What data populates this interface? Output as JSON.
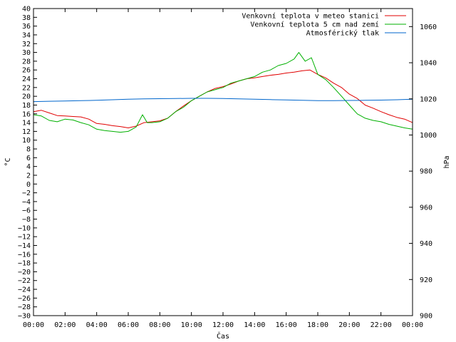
{
  "chart_data": {
    "type": "line",
    "title": "",
    "xlabel": "Čas",
    "ylabel_left": "°C",
    "ylabel_right": "hPa",
    "x_ticks": [
      "00:00",
      "02:00",
      "04:00",
      "06:00",
      "08:00",
      "10:00",
      "12:00",
      "14:00",
      "16:00",
      "18:00",
      "20:00",
      "22:00",
      "00:00"
    ],
    "xlim_hours": [
      0,
      24
    ],
    "ylim_left": [
      -30,
      40
    ],
    "ylim_right": [
      900,
      1070
    ],
    "y_left_ticks": [
      40,
      38,
      36,
      34,
      32,
      30,
      28,
      26,
      24,
      22,
      20,
      18,
      16,
      14,
      12,
      10,
      8,
      6,
      4,
      2,
      0,
      -2,
      -4,
      -6,
      -8,
      -10,
      -12,
      -14,
      -16,
      -18,
      -20,
      -22,
      -24,
      -26,
      -28,
      -30
    ],
    "y_left_tick_labels": [
      "40",
      "38",
      "36",
      "34",
      "32",
      "30",
      "28",
      "26",
      "24",
      "22",
      "20",
      "18",
      "16",
      "14",
      "12",
      "10",
      "8",
      "6",
      "4",
      "2",
      "0",
      "−2",
      "−4",
      "−6",
      "−8",
      "−10",
      "−12",
      "−14",
      "−16",
      "−18",
      "−20",
      "−22",
      "−24",
      "−26",
      "−28",
      "−30"
    ],
    "y_right_ticks": [
      1060,
      1040,
      1020,
      1000,
      980,
      960,
      940,
      920,
      900
    ],
    "y_right_tick_labels": [
      "1060",
      "1040",
      "1020",
      "1000",
      "980",
      "960",
      "940",
      "920",
      "900"
    ],
    "grid": false,
    "legend_position": "top-right",
    "series": [
      {
        "name": "Venkovní teplota v meteo stanici",
        "color": "#e00000",
        "axis": "left",
        "x": [
          0,
          0.5,
          1,
          1.5,
          2,
          2.5,
          3,
          3.5,
          4,
          4.5,
          5,
          5.5,
          6,
          6.5,
          7,
          7.5,
          8,
          8.5,
          9,
          9.5,
          10,
          10.5,
          11,
          11.5,
          12,
          12.5,
          13,
          13.5,
          14,
          14.5,
          15,
          15.5,
          16,
          16.5,
          17,
          17.5,
          18,
          18.5,
          19,
          19.5,
          20,
          20.5,
          21,
          21.5,
          22,
          22.5,
          23,
          23.5,
          24
        ],
        "y": [
          16.5,
          16.8,
          16.2,
          15.6,
          15.5,
          15.4,
          15.3,
          14.8,
          13.8,
          13.6,
          13.3,
          13.1,
          12.8,
          13.2,
          14.0,
          14.2,
          14.4,
          15.0,
          16.5,
          17.8,
          19.0,
          20.0,
          21.0,
          21.8,
          22.2,
          22.8,
          23.5,
          24.0,
          24.2,
          24.5,
          24.8,
          25.0,
          25.3,
          25.5,
          25.8,
          26.0,
          25.0,
          24.2,
          23.0,
          22.0,
          20.5,
          19.5,
          18.0,
          17.3,
          16.5,
          15.8,
          15.2,
          14.8,
          14.0
        ]
      },
      {
        "name": "Venkovní teplota 5 cm nad zemí",
        "color": "#00b000",
        "axis": "left",
        "x": [
          0,
          0.5,
          1,
          1.5,
          2,
          2.5,
          3,
          3.5,
          4,
          4.5,
          5,
          5.5,
          6,
          6.5,
          6.9,
          7.2,
          7.5,
          8,
          8.5,
          9,
          9.5,
          10,
          10.5,
          11,
          11.5,
          12,
          12.5,
          13,
          13.5,
          14,
          14.5,
          15,
          15.5,
          16,
          16.5,
          16.8,
          17.2,
          17.6,
          18,
          18.5,
          19,
          19.5,
          20,
          20.5,
          21,
          21.5,
          22,
          22.5,
          23,
          23.5,
          24
        ],
        "y": [
          15.8,
          15.5,
          14.5,
          14.2,
          14.8,
          14.6,
          14.0,
          13.5,
          12.5,
          12.2,
          12.0,
          11.8,
          12.0,
          13.0,
          15.8,
          14.0,
          14.0,
          14.2,
          15.0,
          16.5,
          17.5,
          19.0,
          20.0,
          21.0,
          21.5,
          22.0,
          23.0,
          23.5,
          24.0,
          24.5,
          25.5,
          26.0,
          27.0,
          27.5,
          28.5,
          30.0,
          28.0,
          28.8,
          25.0,
          23.8,
          22.0,
          20.0,
          18.0,
          16.0,
          15.0,
          14.5,
          14.2,
          13.6,
          13.2,
          12.8,
          12.5
        ]
      },
      {
        "name": "Atmosférický tlak",
        "color": "#0066cc",
        "axis": "right",
        "x": [
          0,
          1,
          2,
          3,
          4,
          5,
          6,
          7,
          8,
          9,
          10,
          11,
          12,
          13,
          14,
          15,
          16,
          17,
          18,
          19,
          20,
          21,
          22,
          23,
          24
        ],
        "y": [
          1018.5,
          1018.7,
          1018.8,
          1019.0,
          1019.2,
          1019.5,
          1019.8,
          1020.0,
          1020.1,
          1020.2,
          1020.3,
          1020.3,
          1020.2,
          1020.0,
          1019.8,
          1019.6,
          1019.4,
          1019.2,
          1019.0,
          1019.0,
          1019.1,
          1019.2,
          1019.3,
          1019.5,
          1019.8
        ]
      }
    ]
  }
}
